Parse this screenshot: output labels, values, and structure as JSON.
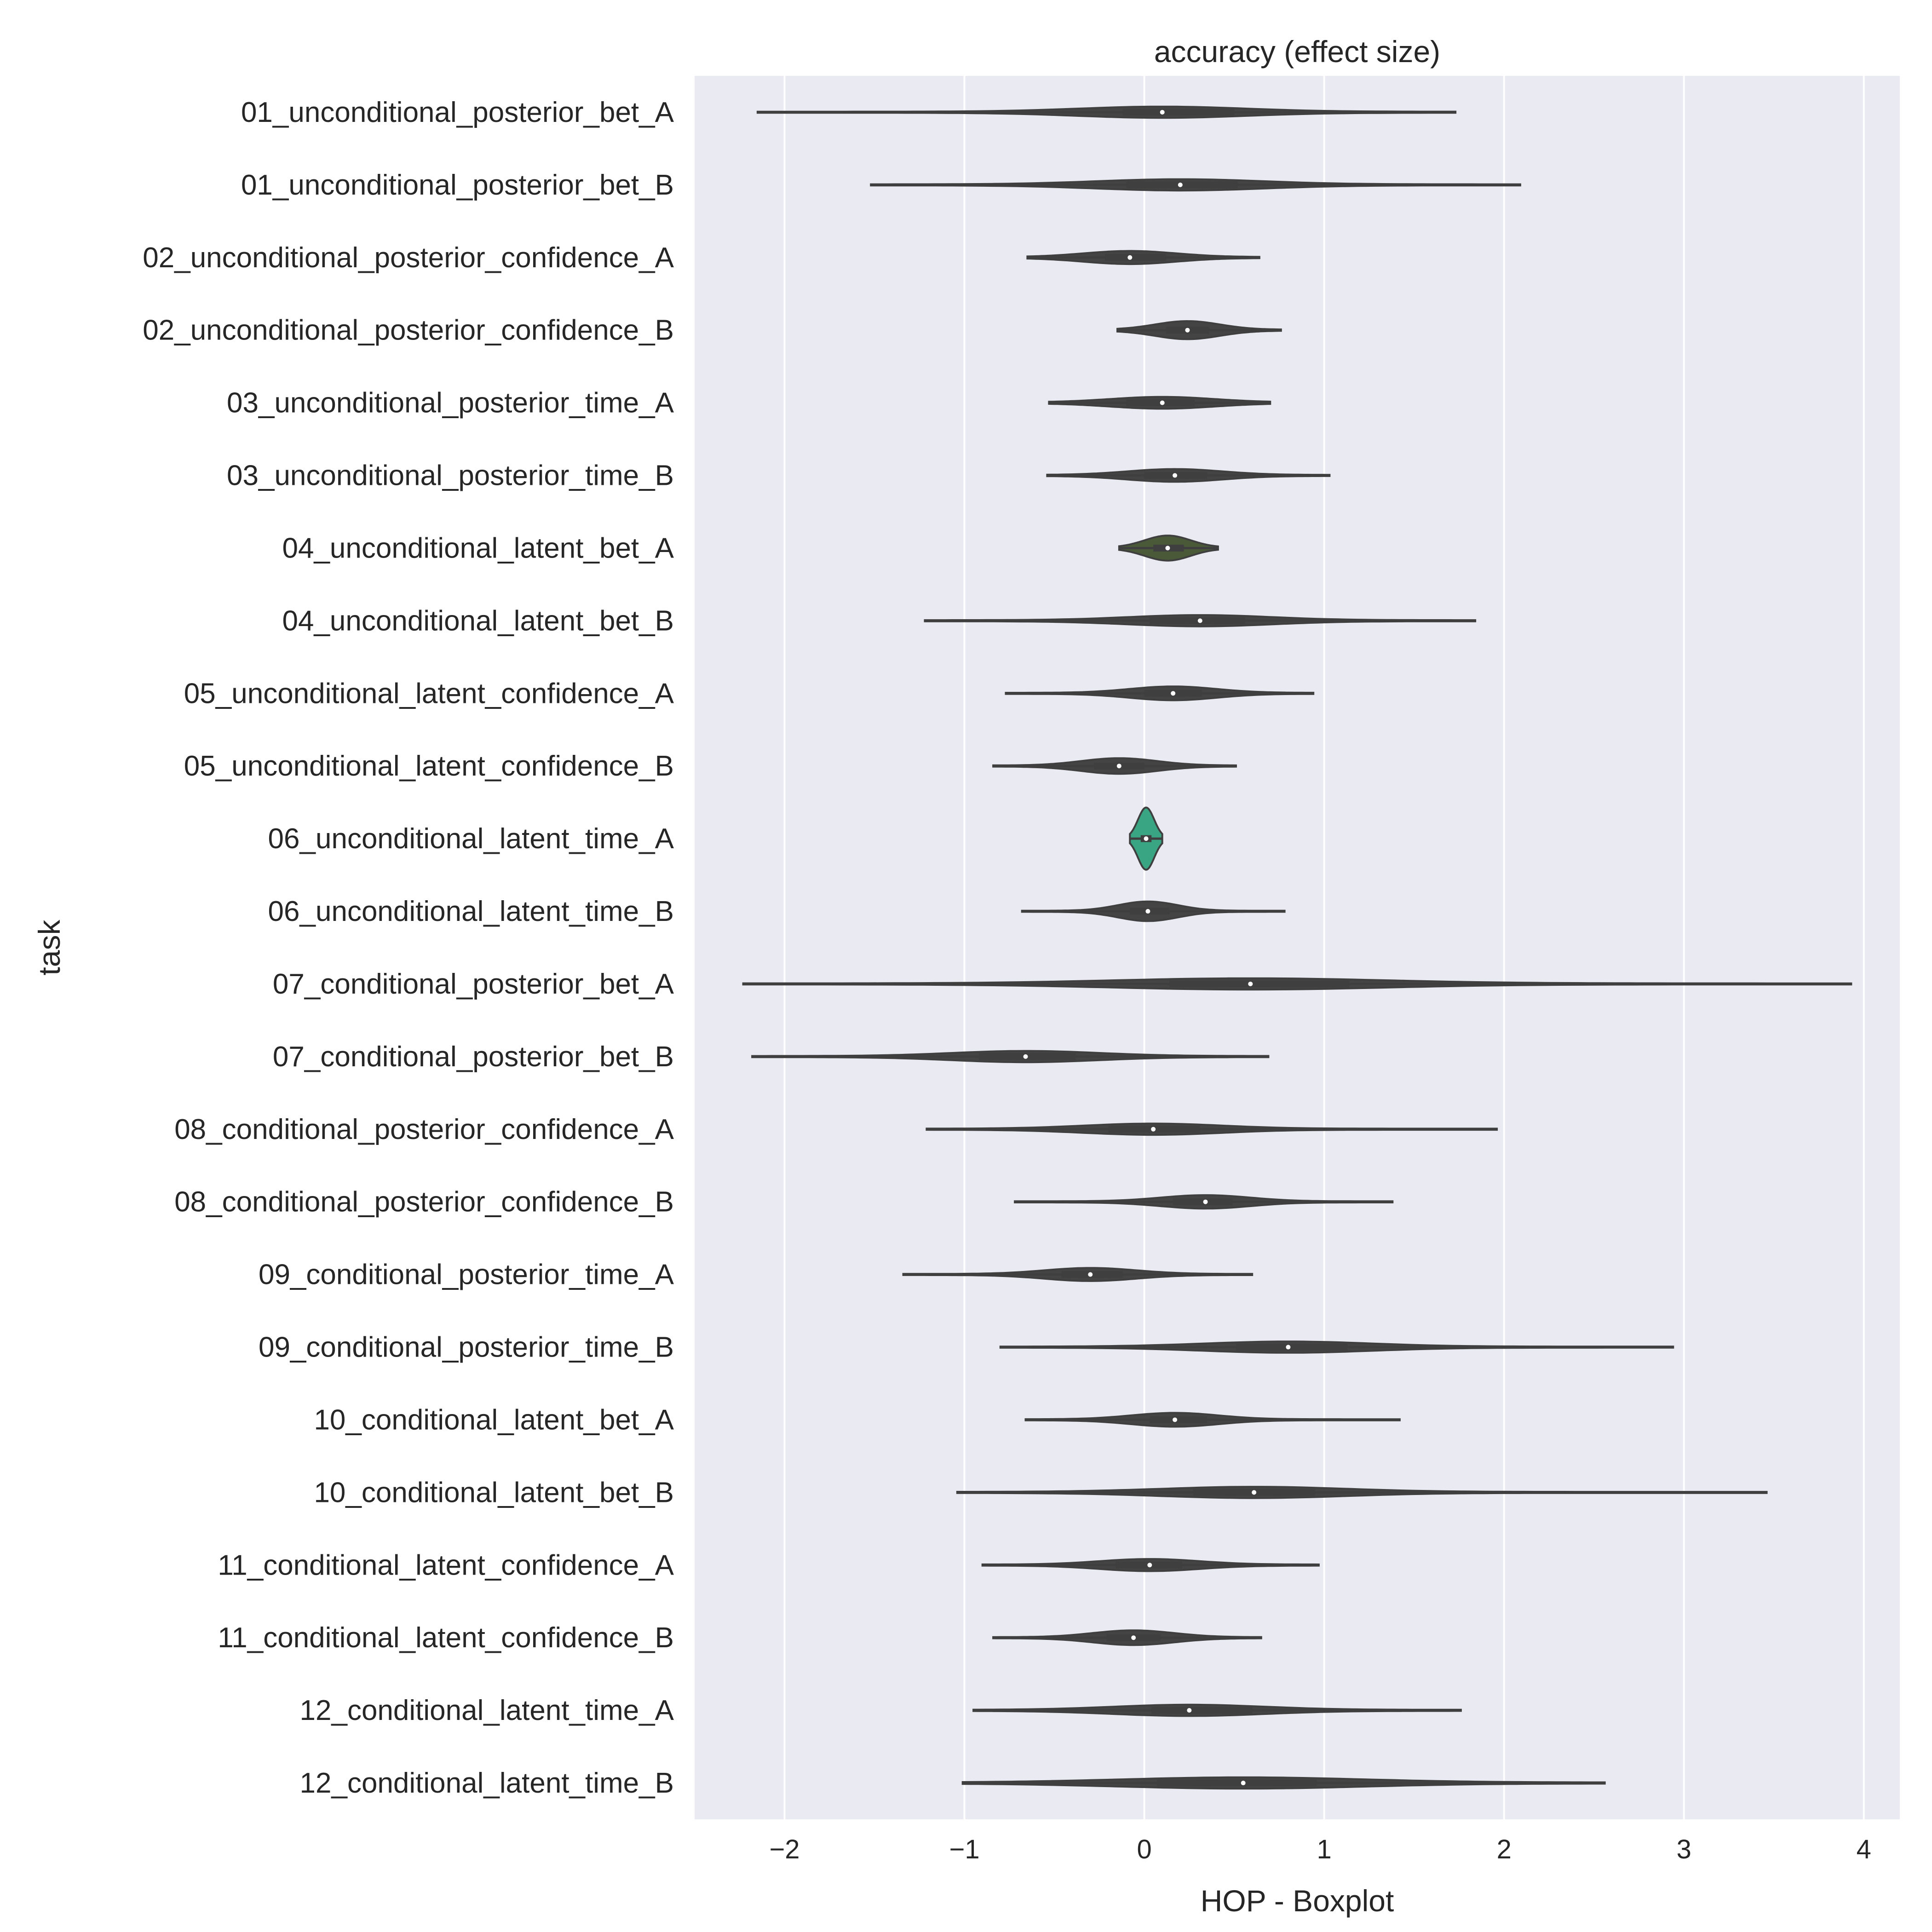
{
  "chart_data": {
    "type": "violin",
    "title": "accuracy (effect size)",
    "xlabel": "HOP - Boxplot",
    "ylabel": "task",
    "xlim": [
      -2.5,
      4.2
    ],
    "xticks": [
      -2,
      -1,
      0,
      1,
      2,
      3,
      4
    ],
    "xtick_labels": [
      "−2",
      "−1",
      "0",
      "1",
      "2",
      "3",
      "4"
    ],
    "grid": "vertical",
    "background": "#eaeaf2",
    "violin_color": "#444444",
    "categories": [
      "01_unconditional_posterior_bet_A",
      "01_unconditional_posterior_bet_B",
      "02_unconditional_posterior_confidence_A",
      "02_unconditional_posterior_confidence_B",
      "03_unconditional_posterior_time_A",
      "03_unconditional_posterior_time_B",
      "04_unconditional_latent_bet_A",
      "04_unconditional_latent_bet_B",
      "05_unconditional_latent_confidence_A",
      "05_unconditional_latent_confidence_B",
      "06_unconditional_latent_time_A",
      "06_unconditional_latent_time_B",
      "07_conditional_posterior_bet_A",
      "07_conditional_posterior_bet_B",
      "08_conditional_posterior_confidence_A",
      "08_conditional_posterior_confidence_B",
      "09_conditional_posterior_time_A",
      "09_conditional_posterior_time_B",
      "10_conditional_latent_bet_A",
      "10_conditional_latent_bet_B",
      "11_conditional_latent_confidence_A",
      "11_conditional_latent_confidence_B",
      "12_conditional_latent_time_A",
      "12_conditional_latent_time_B"
    ],
    "violins": [
      {
        "min": -2.15,
        "q1": -0.12,
        "median": 0.1,
        "q3": 0.5,
        "max": 1.73,
        "fill": "#444444"
      },
      {
        "min": -1.52,
        "q1": -0.1,
        "median": 0.2,
        "q3": 0.52,
        "max": 2.09,
        "fill": "#444444"
      },
      {
        "min": -0.65,
        "q1": -0.22,
        "median": -0.08,
        "q3": 0.12,
        "max": 0.64,
        "fill": "#444444"
      },
      {
        "min": -0.15,
        "q1": 0.12,
        "median": 0.24,
        "q3": 0.36,
        "max": 0.76,
        "fill": "#444444"
      },
      {
        "min": -0.53,
        "q1": -0.1,
        "median": 0.1,
        "q3": 0.28,
        "max": 0.7,
        "fill": "#444444"
      },
      {
        "min": -0.54,
        "q1": 0.0,
        "median": 0.17,
        "q3": 0.35,
        "max": 1.03,
        "fill": "#444444"
      },
      {
        "min": -0.14,
        "q1": 0.05,
        "median": 0.13,
        "q3": 0.22,
        "max": 0.41,
        "fill": "#4a5a38"
      },
      {
        "min": -1.22,
        "q1": 0.03,
        "median": 0.31,
        "q3": 0.56,
        "max": 1.84,
        "fill": "#444444"
      },
      {
        "min": -0.77,
        "q1": 0.0,
        "median": 0.16,
        "q3": 0.32,
        "max": 0.94,
        "fill": "#444444"
      },
      {
        "min": -0.84,
        "q1": -0.28,
        "median": -0.14,
        "q3": 0.0,
        "max": 0.51,
        "fill": "#444444"
      },
      {
        "min": -0.08,
        "q1": -0.02,
        "median": 0.01,
        "q3": 0.04,
        "max": 0.1,
        "fill": "#3aa583"
      },
      {
        "min": -0.68,
        "q1": -0.08,
        "median": 0.02,
        "q3": 0.14,
        "max": 0.78,
        "fill": "#444444"
      },
      {
        "min": -2.23,
        "q1": 0.14,
        "median": 0.59,
        "q3": 1.14,
        "max": 3.93,
        "fill": "#444444"
      },
      {
        "min": -2.18,
        "q1": -0.92,
        "median": -0.66,
        "q3": -0.38,
        "max": 0.69,
        "fill": "#444444"
      },
      {
        "min": -1.21,
        "q1": -0.2,
        "median": 0.05,
        "q3": 0.31,
        "max": 1.96,
        "fill": "#444444"
      },
      {
        "min": -0.72,
        "q1": 0.16,
        "median": 0.34,
        "q3": 0.49,
        "max": 1.38,
        "fill": "#444444"
      },
      {
        "min": -1.34,
        "q1": -0.46,
        "median": -0.3,
        "q3": -0.12,
        "max": 0.6,
        "fill": "#444444"
      },
      {
        "min": -0.8,
        "q1": 0.51,
        "median": 0.8,
        "q3": 1.13,
        "max": 2.94,
        "fill": "#444444"
      },
      {
        "min": -0.66,
        "q1": 0.03,
        "median": 0.17,
        "q3": 0.35,
        "max": 1.42,
        "fill": "#444444"
      },
      {
        "min": -1.04,
        "q1": 0.27,
        "median": 0.61,
        "q3": 0.95,
        "max": 3.46,
        "fill": "#444444"
      },
      {
        "min": -0.9,
        "q1": -0.16,
        "median": 0.03,
        "q3": 0.21,
        "max": 0.97,
        "fill": "#444444"
      },
      {
        "min": -0.84,
        "q1": -0.21,
        "median": -0.06,
        "q3": 0.09,
        "max": 0.65,
        "fill": "#444444"
      },
      {
        "min": -0.95,
        "q1": 0.04,
        "median": 0.25,
        "q3": 0.6,
        "max": 1.76,
        "fill": "#444444"
      },
      {
        "min": -1.01,
        "q1": 0.07,
        "median": 0.55,
        "q3": 0.96,
        "max": 2.56,
        "fill": "#444444"
      }
    ]
  }
}
